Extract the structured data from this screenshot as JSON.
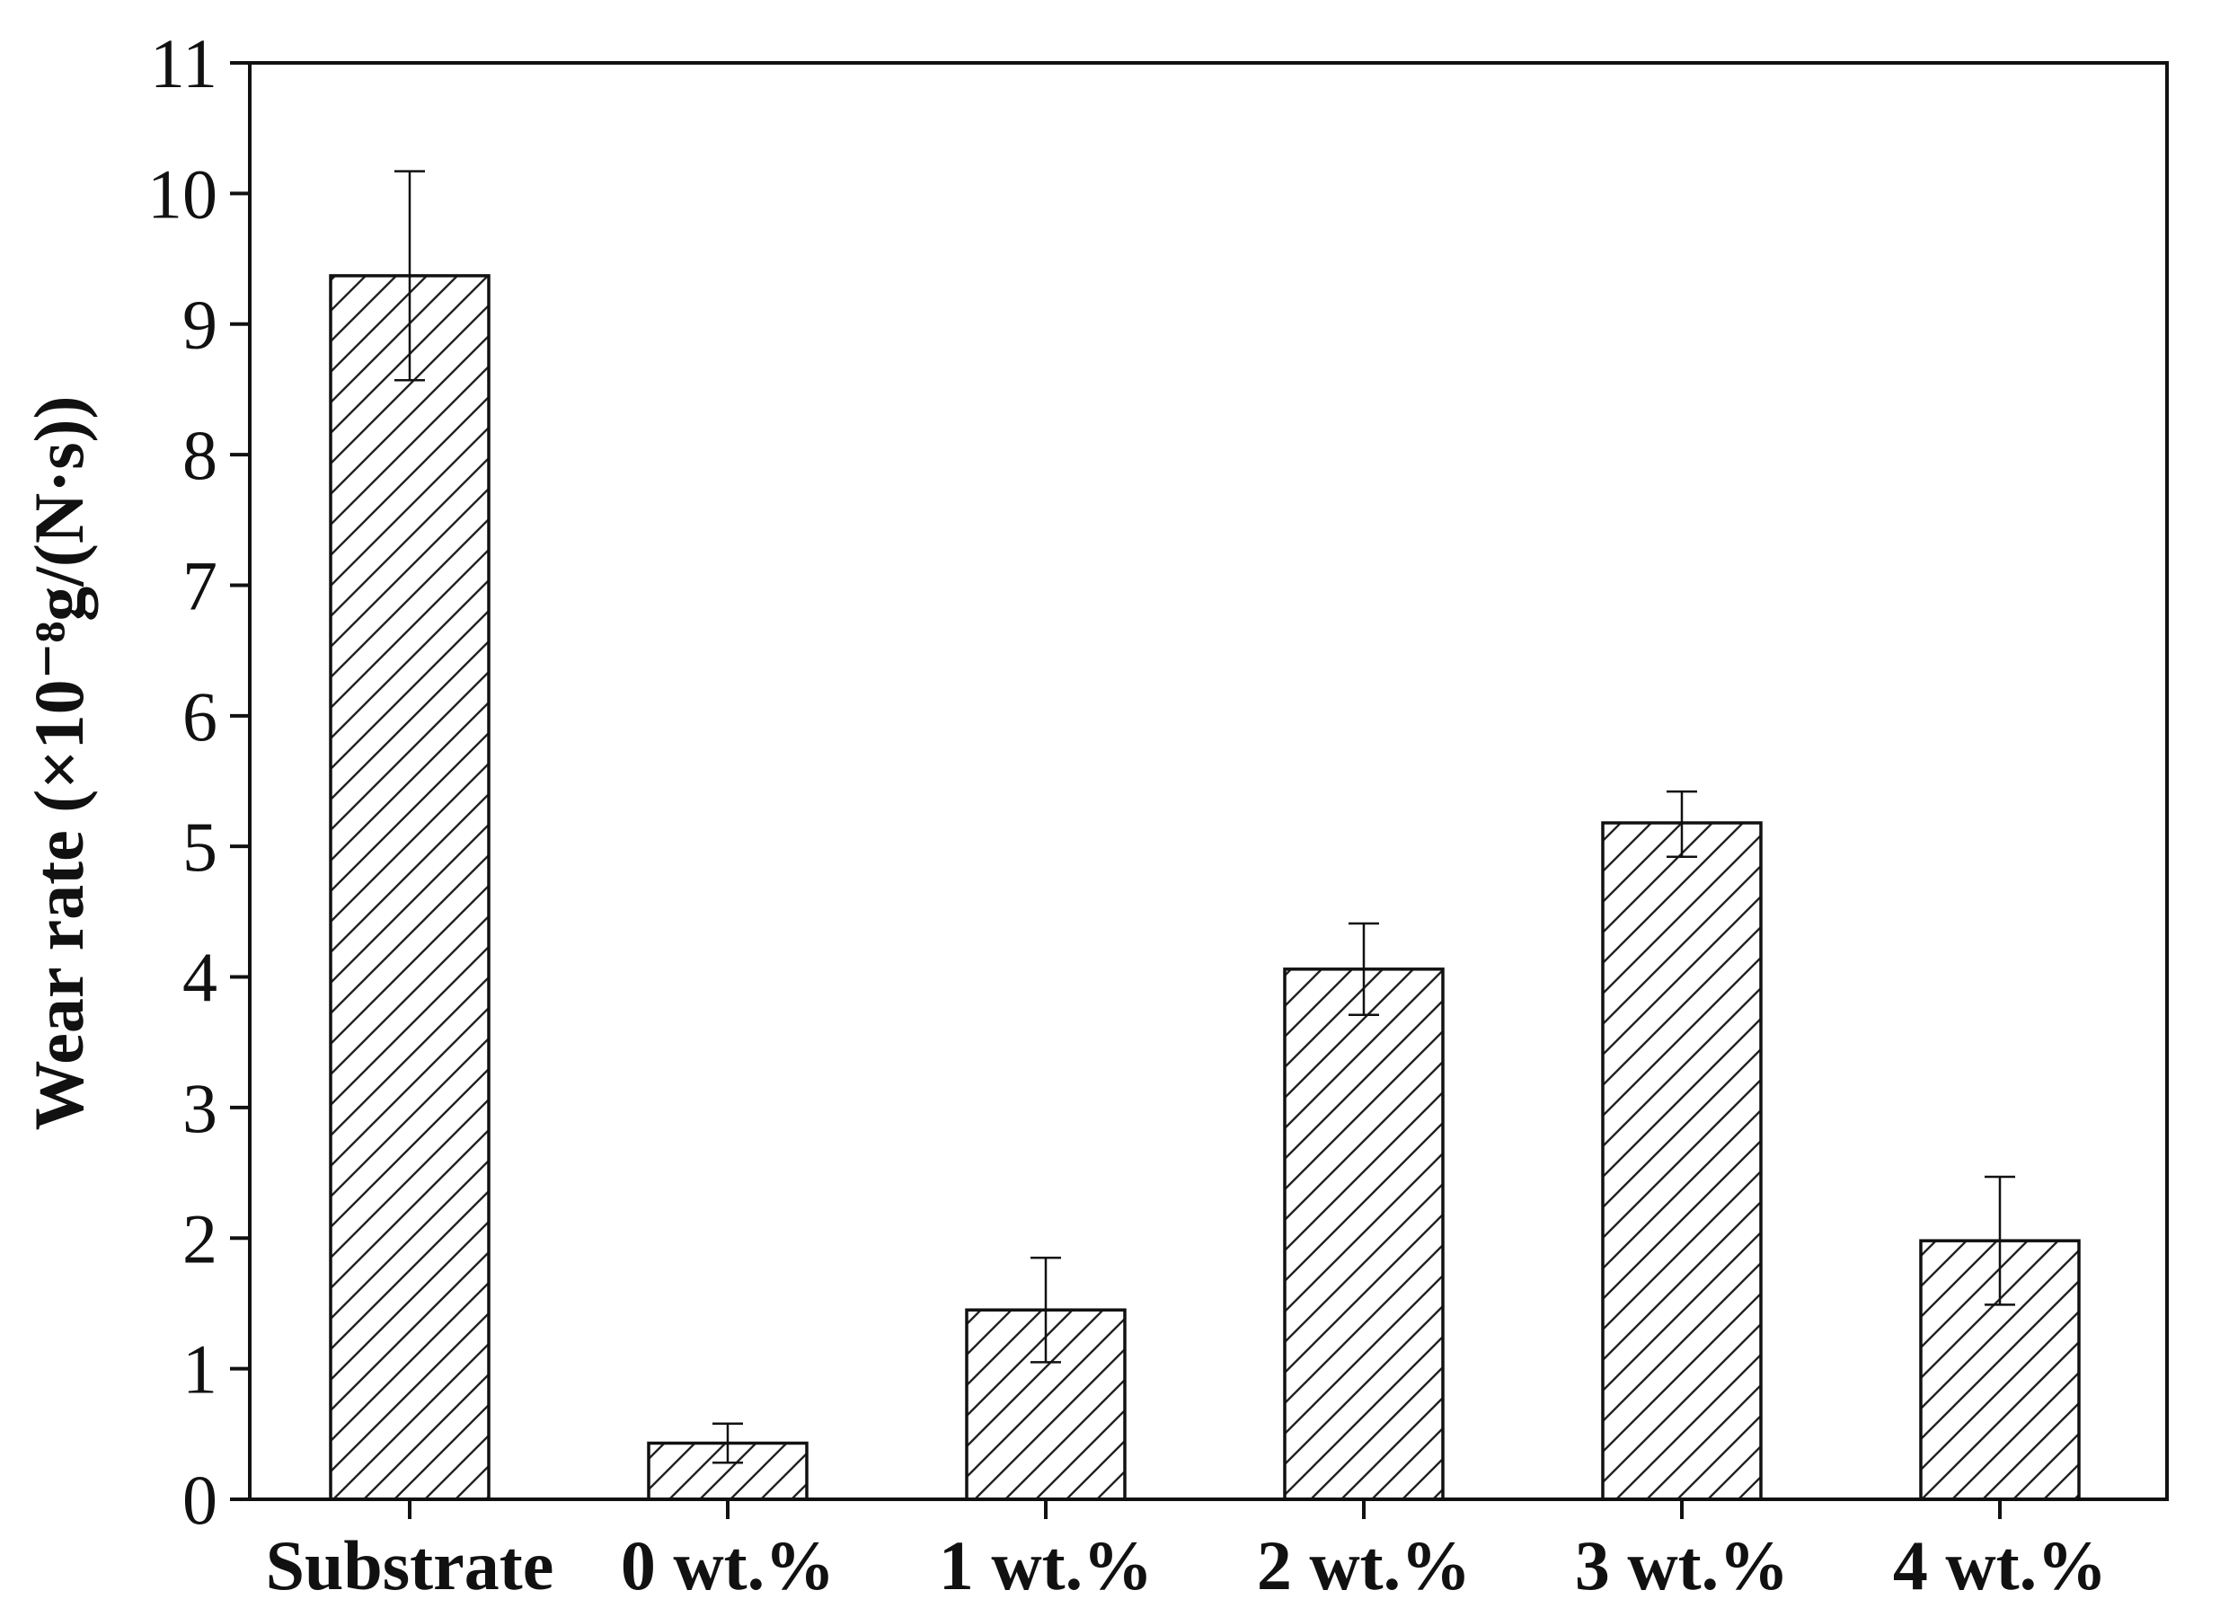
{
  "chart_data": {
    "type": "bar",
    "title": "",
    "xlabel": "",
    "ylabel": "Wear rate (×10⁻⁸g/(N·s))",
    "ylim": [
      0,
      11
    ],
    "yticks": [
      "0",
      "1",
      "2",
      "3",
      "4",
      "5",
      "6",
      "7",
      "8",
      "9",
      "10",
      "11"
    ],
    "categories": [
      "Substrate",
      "0 wt.%",
      "1 wt.%",
      "2 wt.%",
      "3 wt.%",
      "4 wt.%"
    ],
    "values": [
      9.37,
      0.43,
      1.45,
      4.06,
      5.18,
      1.98
    ],
    "error_upper": [
      10.17,
      0.58,
      1.85,
      4.41,
      5.42,
      2.47
    ],
    "error_lower": [
      8.57,
      0.28,
      1.05,
      3.71,
      4.92,
      1.49
    ],
    "bar_fill": "hatched",
    "bar_color": "#ffffff",
    "line_color": "#111111",
    "grid": false,
    "legend": "none"
  }
}
